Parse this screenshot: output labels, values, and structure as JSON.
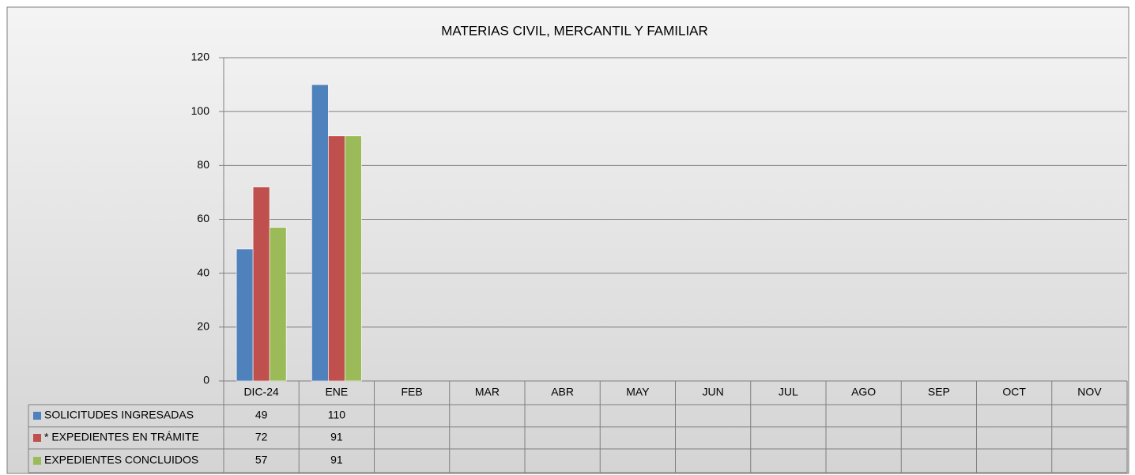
{
  "chart_data": {
    "type": "bar",
    "title": "MATERIAS CIVIL, MERCANTIL Y FAMILIAR",
    "categories": [
      "DIC-24",
      "ENE",
      "FEB",
      "MAR",
      "ABR",
      "MAY",
      "JUN",
      "JUL",
      "AGO",
      "SEP",
      "OCT",
      "NOV"
    ],
    "series": [
      {
        "name": "SOLICITUDES INGRESADAS",
        "color": "#4f81bd",
        "values": [
          49,
          110,
          null,
          null,
          null,
          null,
          null,
          null,
          null,
          null,
          null,
          null
        ]
      },
      {
        "name": "* EXPEDIENTES EN TRÁMITE",
        "color": "#c0504d",
        "values": [
          72,
          91,
          null,
          null,
          null,
          null,
          null,
          null,
          null,
          null,
          null,
          null
        ]
      },
      {
        "name": "EXPEDIENTES CONCLUIDOS",
        "color": "#9bbb59",
        "values": [
          57,
          91,
          null,
          null,
          null,
          null,
          null,
          null,
          null,
          null,
          null,
          null
        ]
      }
    ],
    "ylim": [
      0,
      120
    ],
    "yticks": [
      0,
      20,
      40,
      60,
      80,
      100,
      120
    ],
    "grid": true
  }
}
